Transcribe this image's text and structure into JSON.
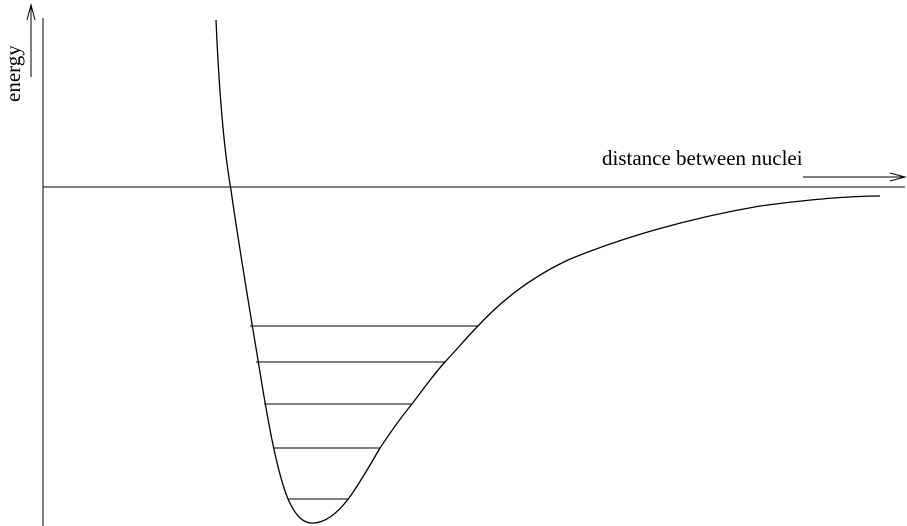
{
  "diagram": {
    "x_axis_label": "distance between nuclei",
    "y_axis_label": "energy",
    "curve": "potential-energy-well",
    "vibrational_levels": 5,
    "stroke_color": "#000000",
    "background_color": "#ffffff"
  }
}
